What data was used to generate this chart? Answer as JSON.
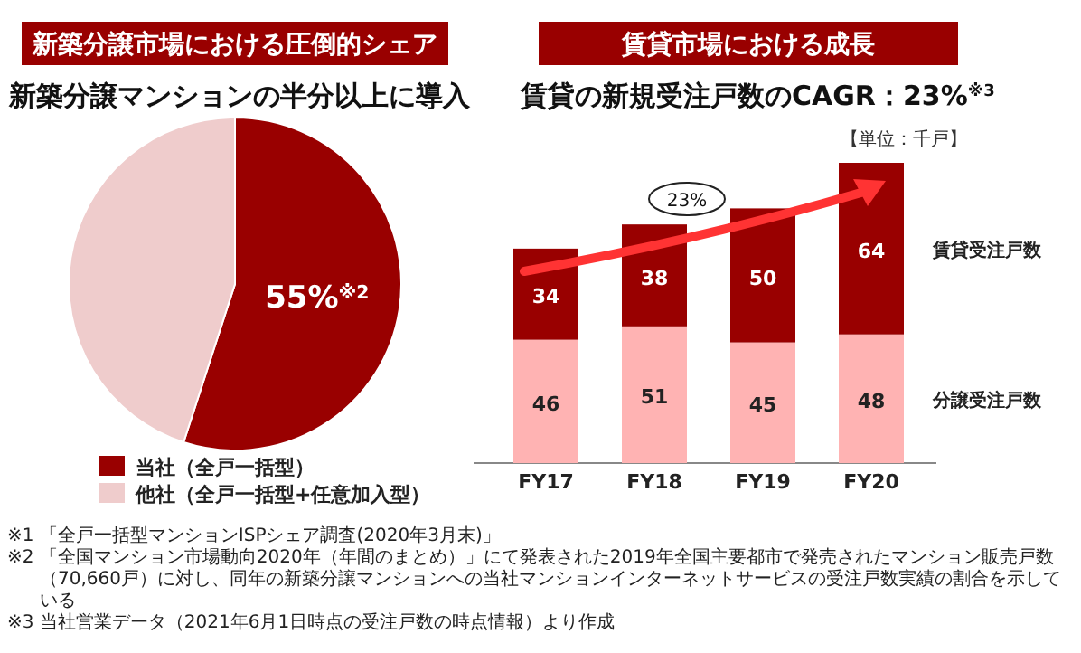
{
  "chart_data": [
    {
      "type": "pie",
      "title": "新築分譲市場における圧倒的シェア",
      "subtitle": "新築分譲マンションの半分以上に導入",
      "categories": [
        "当社（全戸一括型）",
        "他社（全戸一括型+任意加入型）"
      ],
      "values": [
        55,
        45
      ],
      "colors": [
        "#990000",
        "#efcccc"
      ],
      "value_labels": [
        "55%$^{※2}$",
        null
      ],
      "legend": "bottom",
      "annotations": [
        "※1 「全戸一括型マンションISPシェア調査(2020年3月末)」",
        "※2 「全国マンション市場動向2020年（年間のまとめ）」にて発表された2019年全国主要都市で発売されたマンション販売戸数（70,660戸）に対し、同年の新築分譲マンションへの当社マンションインターネットサービスの受注戸数実績の割合を示している"
      ]
    },
    {
      "type": "bar",
      "title": "賃貸市場における成長",
      "subtitle": "賃貸の新規受注戸数のCAGR：23%$^{※3}$",
      "categories": [
        "FY17",
        "FY18",
        "FY19",
        "FY20"
      ],
      "stacked": true,
      "data_labels": true,
      "legend": "right",
      "series": [
        {
          "name": "分譲受注戸数",
          "color": "#ffb3b3",
          "values": [
            46,
            51,
            45,
            48
          ]
        },
        {
          "name": "賃貸受注戸数",
          "color": "#990000",
          "values": [
            34,
            38,
            50,
            64
          ]
        }
      ],
      "annotations": [
        "【単位：千戸】",
        "23%",
        "※3 当社営業データ（2021年6月1日時点の受注戸数の時点情報）より作成"
      ]
    }
  ]
}
